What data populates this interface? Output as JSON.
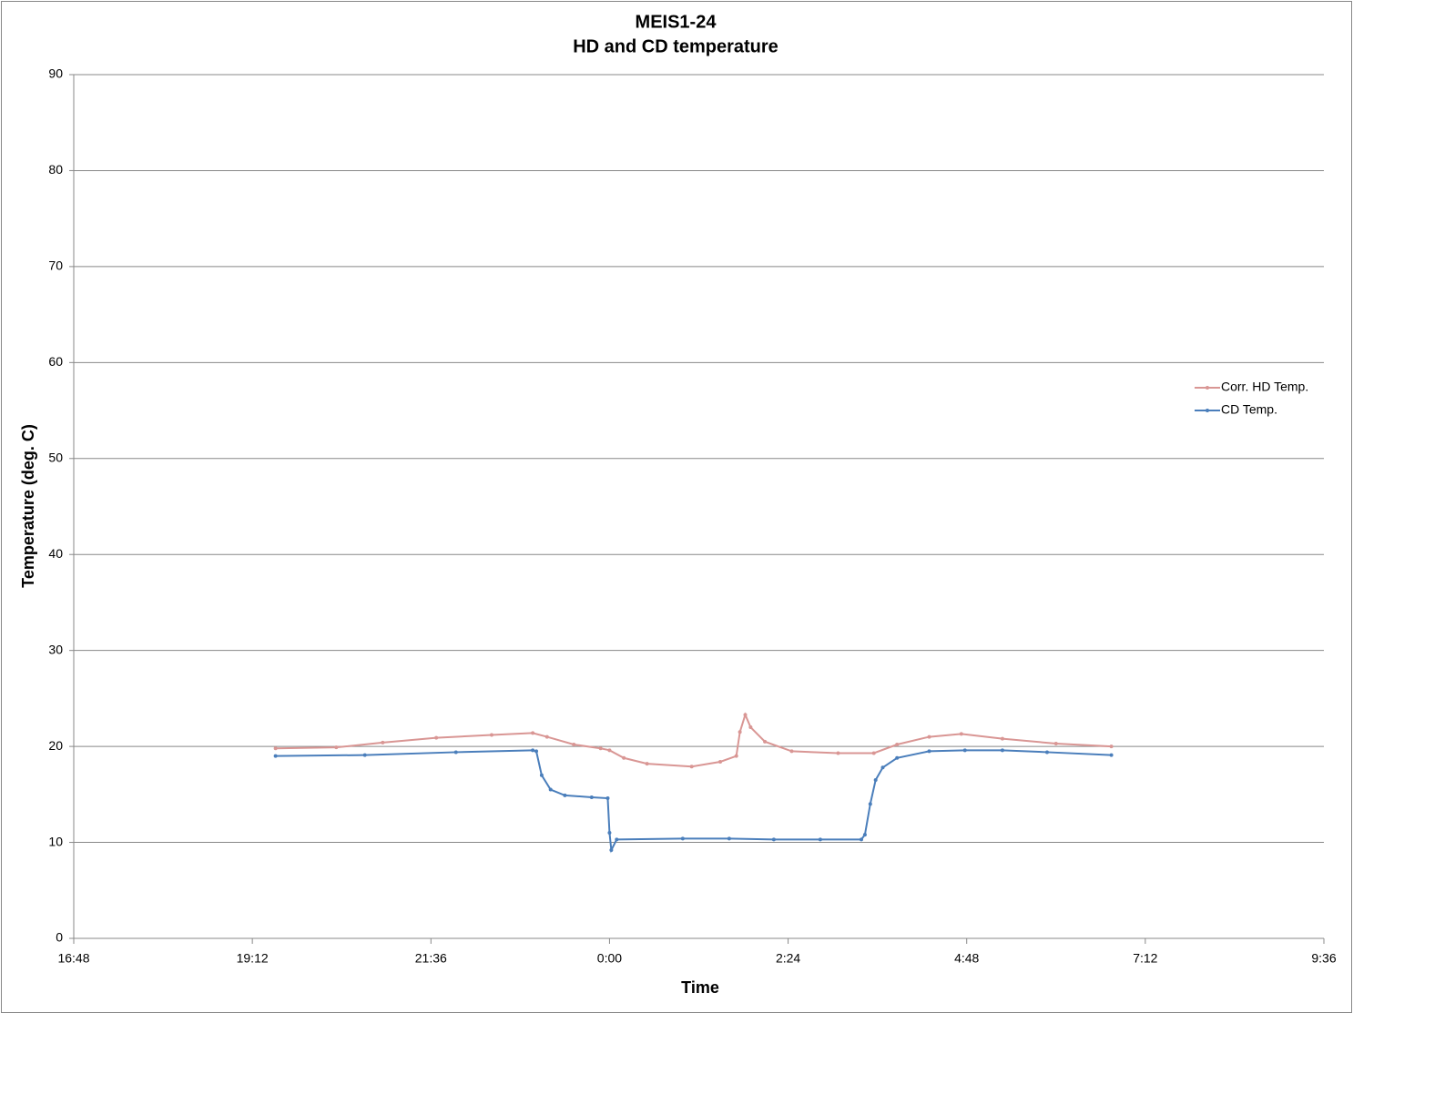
{
  "chart_data": {
    "type": "line",
    "title": "MEIS1-24",
    "subtitle": "HD and CD temperature",
    "x_label": "Time",
    "y_label": "Temperature (deg. C)",
    "xlim": [
      0.7,
      1.4
    ],
    "xticks": [
      {
        "value": 0.7,
        "label": "16:48"
      },
      {
        "value": 0.8,
        "label": "19:12"
      },
      {
        "value": 0.9,
        "label": "21:36"
      },
      {
        "value": 1.0,
        "label": "0:00"
      },
      {
        "value": 1.1,
        "label": "2:24"
      },
      {
        "value": 1.2,
        "label": "4:48"
      },
      {
        "value": 1.3,
        "label": "7:12"
      },
      {
        "value": 1.4,
        "label": "9:36"
      }
    ],
    "ylim": [
      0,
      90
    ],
    "yticks": [
      0,
      10,
      20,
      30,
      40,
      50,
      60,
      70,
      80,
      90
    ],
    "grid": true,
    "legend": "right",
    "series": [
      {
        "name": "Corr. HD Temp.",
        "color": "#d99694",
        "x": [
          0.813,
          0.847,
          0.873,
          0.903,
          0.934,
          0.957,
          0.965,
          0.98,
          0.995,
          1.0,
          1.008,
          1.021,
          1.046,
          1.062,
          1.071,
          1.073,
          1.076,
          1.079,
          1.087,
          1.102,
          1.128,
          1.148,
          1.161,
          1.179,
          1.197,
          1.22,
          1.25,
          1.281
        ],
        "values": [
          19.8,
          19.9,
          20.4,
          20.9,
          21.2,
          21.4,
          21.0,
          20.2,
          19.8,
          19.6,
          18.8,
          18.2,
          17.9,
          18.4,
          19.0,
          21.5,
          23.3,
          22.0,
          20.5,
          19.5,
          19.3,
          19.3,
          20.2,
          21.0,
          21.3,
          20.8,
          20.3,
          20.0
        ]
      },
      {
        "name": "CD Temp.",
        "color": "#4a7ebb",
        "x": [
          0.813,
          0.863,
          0.914,
          0.957,
          0.959,
          0.962,
          0.967,
          0.975,
          0.99,
          0.999,
          1.0,
          1.001,
          1.004,
          1.041,
          1.067,
          1.092,
          1.118,
          1.141,
          1.143,
          1.146,
          1.149,
          1.153,
          1.161,
          1.179,
          1.199,
          1.22,
          1.245,
          1.281
        ],
        "values": [
          19.0,
          19.1,
          19.4,
          19.6,
          19.5,
          17.0,
          15.5,
          14.9,
          14.7,
          14.6,
          11.0,
          9.2,
          10.3,
          10.4,
          10.4,
          10.3,
          10.3,
          10.3,
          10.8,
          14.0,
          16.5,
          17.8,
          18.8,
          19.5,
          19.6,
          19.6,
          19.4,
          19.1
        ]
      }
    ]
  }
}
